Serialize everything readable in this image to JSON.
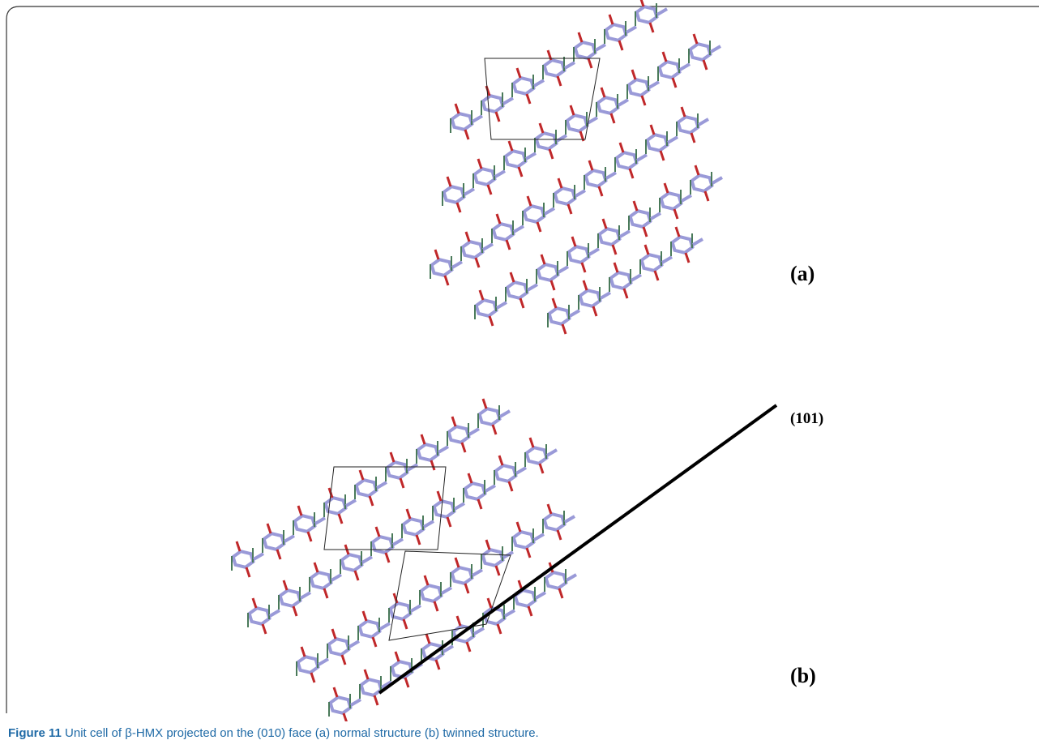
{
  "panel_a": {
    "label": "(a)"
  },
  "panel_b": {
    "label": "(b)",
    "plane_label": "(101)"
  },
  "caption": {
    "label": "Figure 11",
    "text": " Unit cell of β-HMX projected on the (010) face (a) normal structure (b) twinned structure."
  }
}
